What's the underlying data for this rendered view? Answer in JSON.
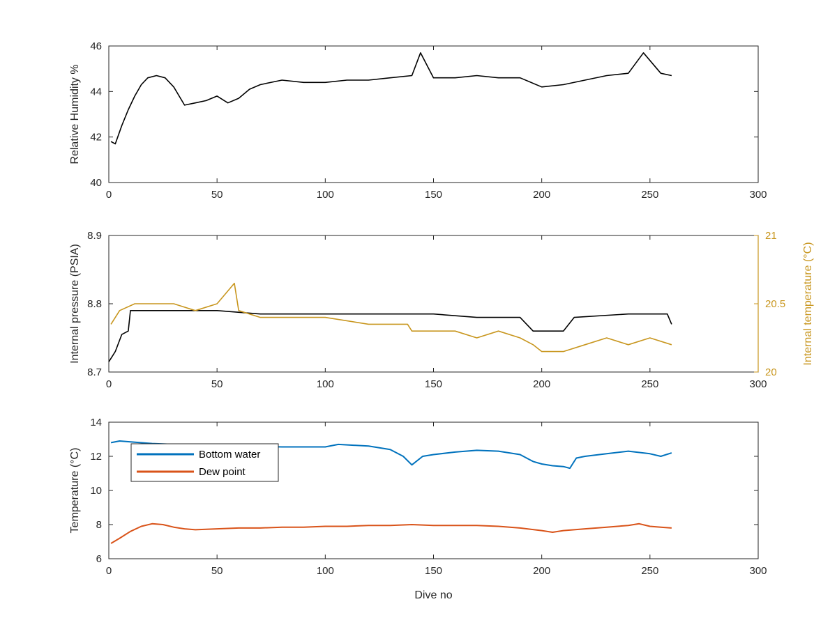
{
  "chart_data": [
    {
      "type": "line",
      "xlabel": "",
      "ylabel": "Relative Humidity %",
      "xlim": [
        0,
        300
      ],
      "ylim": [
        40,
        46
      ],
      "xticks": [
        "0",
        "50",
        "100",
        "150",
        "200",
        "250",
        "300"
      ],
      "yticks": [
        "40",
        "42",
        "44",
        "46"
      ],
      "grid": false,
      "series": [
        {
          "color": "#000000",
          "x": [
            1,
            3,
            6,
            9,
            12,
            15,
            18,
            22,
            26,
            30,
            35,
            40,
            45,
            50,
            55,
            60,
            65,
            70,
            80,
            90,
            100,
            110,
            120,
            130,
            140,
            144,
            150,
            160,
            170,
            180,
            190,
            200,
            210,
            220,
            230,
            240,
            247,
            255,
            260
          ],
          "y": [
            41.8,
            41.7,
            42.5,
            43.2,
            43.8,
            44.3,
            44.6,
            44.7,
            44.6,
            44.2,
            43.4,
            43.5,
            43.6,
            43.8,
            43.5,
            43.7,
            44.1,
            44.3,
            44.5,
            44.4,
            44.4,
            44.5,
            44.5,
            44.6,
            44.7,
            45.7,
            44.6,
            44.6,
            44.7,
            44.6,
            44.6,
            44.2,
            44.3,
            44.5,
            44.7,
            44.8,
            45.7,
            44.8,
            44.7
          ]
        }
      ]
    },
    {
      "type": "line",
      "xlabel": "",
      "ylabel": "Internal pressure (PSIA)",
      "ylabel_right": "Internal temperature (°C)",
      "xlim": [
        0,
        300
      ],
      "ylim": [
        8.7,
        8.9
      ],
      "ylim_right": [
        20,
        21
      ],
      "xticks": [
        "0",
        "50",
        "100",
        "150",
        "200",
        "250",
        "300"
      ],
      "yticks": [
        "8.7",
        "8.8",
        "8.9"
      ],
      "yticks_right": [
        "20",
        "20.5",
        "21"
      ],
      "grid": false,
      "series": [
        {
          "color": "#000000",
          "axis": "left",
          "x": [
            0,
            3,
            6,
            9,
            10,
            30,
            50,
            70,
            90,
            110,
            130,
            150,
            170,
            190,
            196,
            200,
            210,
            215,
            240,
            258,
            260
          ],
          "y": [
            8.715,
            8.73,
            8.755,
            8.76,
            8.79,
            8.79,
            8.79,
            8.785,
            8.785,
            8.785,
            8.785,
            8.785,
            8.78,
            8.78,
            8.76,
            8.76,
            8.76,
            8.78,
            8.785,
            8.785,
            8.77
          ]
        },
        {
          "color": "#c8961e",
          "axis": "right",
          "x": [
            1,
            5,
            12,
            20,
            30,
            40,
            50,
            58,
            60,
            70,
            80,
            100,
            120,
            138,
            140,
            160,
            170,
            180,
            190,
            196,
            200,
            210,
            220,
            230,
            240,
            250,
            260
          ],
          "y": [
            20.35,
            20.45,
            20.5,
            20.5,
            20.5,
            20.45,
            20.5,
            20.65,
            20.45,
            20.4,
            20.4,
            20.4,
            20.35,
            20.35,
            20.3,
            20.3,
            20.25,
            20.3,
            20.25,
            20.2,
            20.15,
            20.15,
            20.2,
            20.25,
            20.2,
            20.25,
            20.2
          ]
        }
      ]
    },
    {
      "type": "line",
      "xlabel": "Dive no",
      "ylabel": "Temperature (°C)",
      "xlim": [
        0,
        300
      ],
      "ylim": [
        6,
        14
      ],
      "xticks": [
        "0",
        "50",
        "100",
        "150",
        "200",
        "250",
        "300"
      ],
      "yticks": [
        "6",
        "8",
        "10",
        "12",
        "14"
      ],
      "grid": false,
      "legend": "top-left",
      "series": [
        {
          "name": "Bottom water",
          "color": "#0072bd",
          "x": [
            1,
            5,
            10,
            20,
            30,
            40,
            50,
            60,
            80,
            100,
            106,
            120,
            130,
            136,
            140,
            145,
            150,
            160,
            170,
            180,
            190,
            196,
            200,
            205,
            210,
            213,
            216,
            220,
            230,
            240,
            250,
            255,
            260
          ],
          "y": [
            12.8,
            12.9,
            12.85,
            12.75,
            12.7,
            12.65,
            12.6,
            12.6,
            12.55,
            12.55,
            12.7,
            12.6,
            12.4,
            12.0,
            11.5,
            12.0,
            12.1,
            12.25,
            12.35,
            12.3,
            12.1,
            11.7,
            11.55,
            11.45,
            11.4,
            11.3,
            11.9,
            12.0,
            12.15,
            12.3,
            12.15,
            12.0,
            12.2
          ]
        },
        {
          "name": "Dew point",
          "color": "#d95319",
          "x": [
            1,
            5,
            10,
            15,
            20,
            25,
            30,
            35,
            40,
            50,
            60,
            70,
            80,
            90,
            100,
            110,
            120,
            130,
            140,
            150,
            160,
            170,
            180,
            190,
            200,
            205,
            210,
            220,
            230,
            240,
            245,
            250,
            255,
            260
          ],
          "y": [
            6.9,
            7.2,
            7.6,
            7.9,
            8.05,
            8.0,
            7.85,
            7.75,
            7.7,
            7.75,
            7.8,
            7.8,
            7.85,
            7.85,
            7.9,
            7.9,
            7.95,
            7.95,
            8.0,
            7.95,
            7.95,
            7.95,
            7.9,
            7.8,
            7.65,
            7.55,
            7.65,
            7.75,
            7.85,
            7.95,
            8.05,
            7.9,
            7.85,
            7.8
          ]
        }
      ]
    }
  ]
}
